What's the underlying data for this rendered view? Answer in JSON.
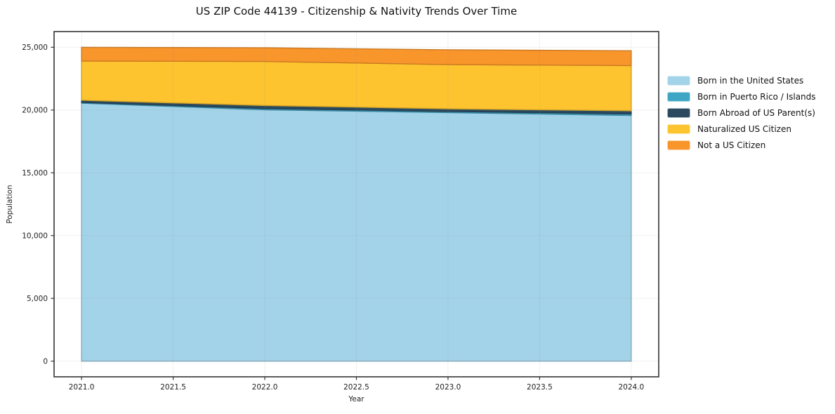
{
  "chart_data": {
    "type": "area",
    "stacked": true,
    "title": "US ZIP Code 44139 - Citizenship & Nativity Trends Over Time",
    "xlabel": "Year",
    "ylabel": "Population",
    "x": [
      2021,
      2022,
      2023,
      2024
    ],
    "series": [
      {
        "name": "Born in the United States",
        "color": "#a3d3e8",
        "values": [
          20550,
          20020,
          19800,
          19570
        ]
      },
      {
        "name": "Born in Puerto Rico / Islands",
        "color": "#3fa5c5",
        "values": [
          60,
          100,
          90,
          120
        ]
      },
      {
        "name": "Born Abroad of US Parent(s)",
        "color": "#2b4a60",
        "values": [
          170,
          240,
          210,
          250
        ]
      },
      {
        "name": "Naturalized US Citizen",
        "color": "#fdc42f",
        "values": [
          3120,
          3510,
          3520,
          3600
        ]
      },
      {
        "name": "Not a US Citizen",
        "color": "#f8952b",
        "values": [
          1100,
          1090,
          1180,
          1180
        ]
      }
    ],
    "xlim": [
      2020.85,
      2024.15
    ],
    "ylim": [
      -1250,
      26250
    ],
    "x_ticks": [
      2021.0,
      2021.5,
      2022.0,
      2022.5,
      2023.0,
      2023.5,
      2024.0
    ],
    "x_tick_labels": [
      "2021.0",
      "2021.5",
      "2022.0",
      "2022.5",
      "2023.0",
      "2023.5",
      "2024.0"
    ],
    "y_ticks": [
      0,
      5000,
      10000,
      15000,
      20000,
      25000
    ],
    "y_tick_labels": [
      "0",
      "5,000",
      "10,000",
      "15,000",
      "20,000",
      "25,000"
    ],
    "grid": true,
    "legend_position": "right-outside",
    "background_color": "#ffffff",
    "spine_color": "#333333"
  }
}
